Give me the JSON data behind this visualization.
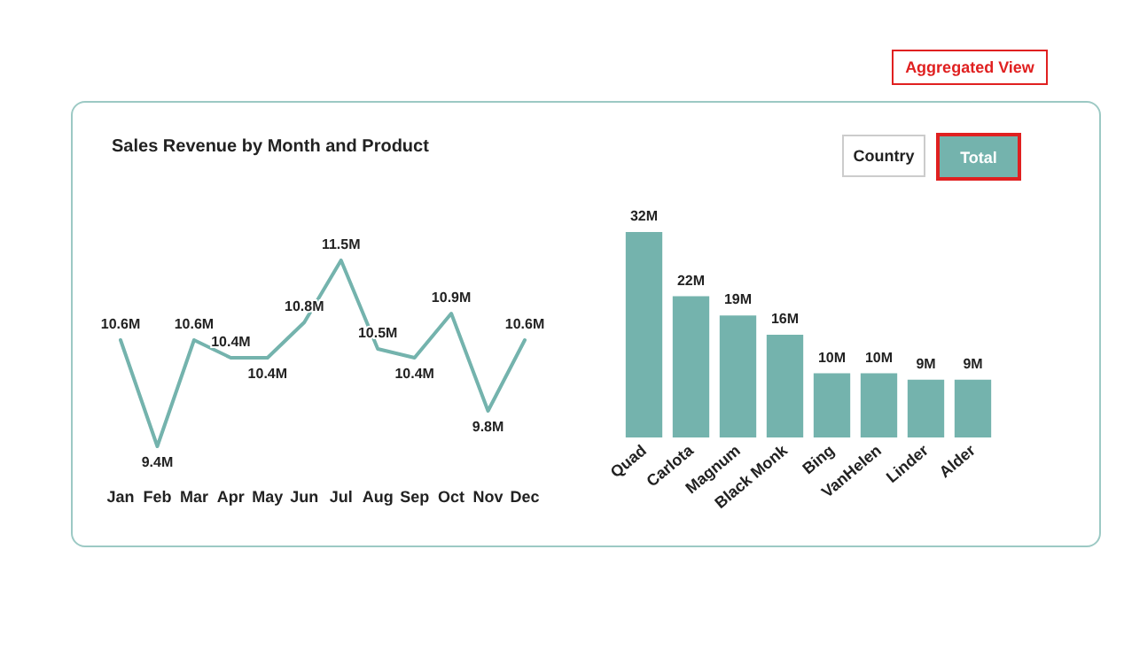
{
  "chart_data": [
    {
      "type": "line",
      "title": "Sales Revenue by Month and Product",
      "categories": [
        "Jan",
        "Feb",
        "Mar",
        "Apr",
        "May",
        "Jun",
        "Jul",
        "Aug",
        "Sep",
        "Oct",
        "Nov",
        "Dec"
      ],
      "series": [
        {
          "color": "#74b3ad",
          "values": [
            10.6,
            9.4,
            10.6,
            10.4,
            10.4,
            10.8,
            11.5,
            10.5,
            10.4,
            10.9,
            9.8,
            10.6
          ],
          "value_labels": [
            "10.6M",
            "9.4M",
            "10.6M",
            "10.4M",
            "10.4M",
            "10.8M",
            "11.5M",
            "10.5M",
            "10.4M",
            "10.9M",
            "9.8M",
            "10.6M"
          ]
        }
      ],
      "marker": "none",
      "grid": false,
      "tick_labels": "x",
      "annotations": [
        "Aggregated View"
      ]
    },
    {
      "type": "bar",
      "categories": [
        "Quad",
        "Carlota",
        "Magnum",
        "Black Monk",
        "Bing",
        "VanHelen",
        "Linder",
        "Alder"
      ],
      "series": [
        {
          "color": "#74b3ad",
          "values": [
            32,
            22,
            19,
            16,
            10,
            10,
            9,
            9
          ],
          "value_labels": [
            "32M",
            "22M",
            "19M",
            "16M",
            "10M",
            "10M",
            "9M",
            "9M"
          ]
        }
      ],
      "grid": false,
      "tick_labels": "x",
      "annotations": [
        "Country",
        "Total"
      ]
    }
  ]
}
